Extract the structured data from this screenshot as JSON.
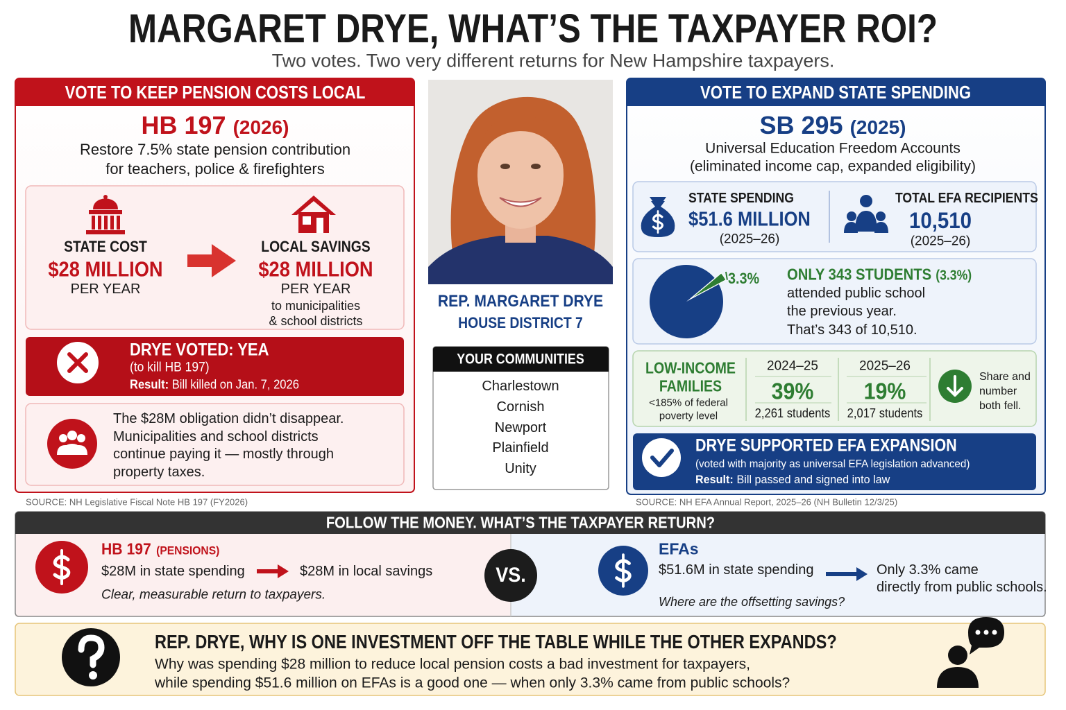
{
  "header": {
    "title": "MARGARET DRYE, WHAT’S THE TAXPAYER ROI?",
    "subtitle": "Two votes. Two very different returns for New Hampshire taxpayers."
  },
  "left": {
    "banner": "VOTE TO KEEP PENSION COSTS LOCAL",
    "bill": "HB 197",
    "year": "(2026)",
    "description": [
      "Restore 7.5% state pension contribution",
      "for teachers, police & firefighters"
    ],
    "state_cost": {
      "label": "STATE COST",
      "amount": "$28 MILLION",
      "period": "PER YEAR"
    },
    "local_savings": {
      "label": "LOCAL SAVINGS",
      "amount": "$28 MILLION",
      "period": "PER YEAR",
      "note": [
        "to municipalities",
        "& school districts"
      ]
    },
    "vote": {
      "title": "DRYE VOTED: YEA",
      "detail": "(to kill HB 197)",
      "result_label": "Result:",
      "result": "Bill killed on Jan. 7, 2026"
    },
    "impact": [
      "The $28M obligation didn’t disappear.",
      "Municipalities and school districts",
      "continue paying it — mostly through",
      "property taxes."
    ],
    "source": "SOURCE: NH Legislative Fiscal Note HB 197 (FY2026)"
  },
  "center": {
    "name": "REP. MARGARET DRYE",
    "district": "HOUSE DISTRICT 7",
    "communities_title": "YOUR COMMUNITIES",
    "communities": [
      "Charlestown",
      "Cornish",
      "Newport",
      "Plainfield",
      "Unity"
    ]
  },
  "right": {
    "banner": "VOTE TO EXPAND STATE SPENDING",
    "bill": "SB 295",
    "year": "(2025)",
    "description": [
      "Universal Education Freedom Accounts",
      "(eliminated income cap, expanded eligibility)"
    ],
    "spending": {
      "label": "STATE SPENDING",
      "amount": "$51.6 MILLION",
      "period": "(2025–26)"
    },
    "recipients": {
      "label": "TOTAL EFA RECIPIENTS",
      "amount": "10,510",
      "period": "(2025–26)"
    },
    "pie": {
      "value": 3.3,
      "label": "3.3%"
    },
    "public_school": {
      "headline": "ONLY 343 STUDENTS",
      "share": "(3.3%)",
      "lines": [
        "attended public school",
        "the previous year.",
        "That’s 343 of 10,510."
      ]
    },
    "low_income": {
      "label": [
        "LOW-INCOME",
        "FAMILIES"
      ],
      "note": [
        "<185% of federal",
        "poverty level"
      ],
      "years": [
        {
          "year": "2024–25",
          "share": "39%",
          "students": "2,261 students"
        },
        {
          "year": "2025–26",
          "share": "19%",
          "students": "2,017 students"
        }
      ],
      "trend": [
        "Share and",
        "number",
        "both fell."
      ]
    },
    "vote": {
      "title": "DRYE SUPPORTED EFA EXPANSION",
      "detail": "(voted with majority as universal EFA legislation advanced)",
      "result_label": "Result:",
      "result": "Bill passed and signed into law"
    },
    "source": "SOURCE: NH EFA Annual Report, 2025–26 (NH Bulletin 12/3/25)"
  },
  "comparison": {
    "banner": "FOLLOW THE MONEY. WHAT’S THE TAXPAYER RETURN?",
    "left": {
      "title": "HB 197",
      "tag": "(PENSIONS)",
      "cost": "$28M in state spending",
      "return": "$28M in local savings",
      "conclusion": "Clear, measurable return to taxpayers."
    },
    "versus": "VS.",
    "right": {
      "title": "EFAs",
      "cost": "$51.6M in state spending",
      "return": [
        "Only 3.3% came",
        "directly from public schools."
      ],
      "question": "Where are the offsetting savings?"
    }
  },
  "question": {
    "headline": "REP. DRYE, WHY IS ONE INVESTMENT OFF THE TABLE WHILE THE OTHER EXPANDS?",
    "lines": [
      "Why was spending $28 million to reduce local pension costs a bad investment for taxpayers,",
      "while spending $51.6 million on EFAs is a good one — when only 3.3% came from public schools?"
    ]
  }
}
